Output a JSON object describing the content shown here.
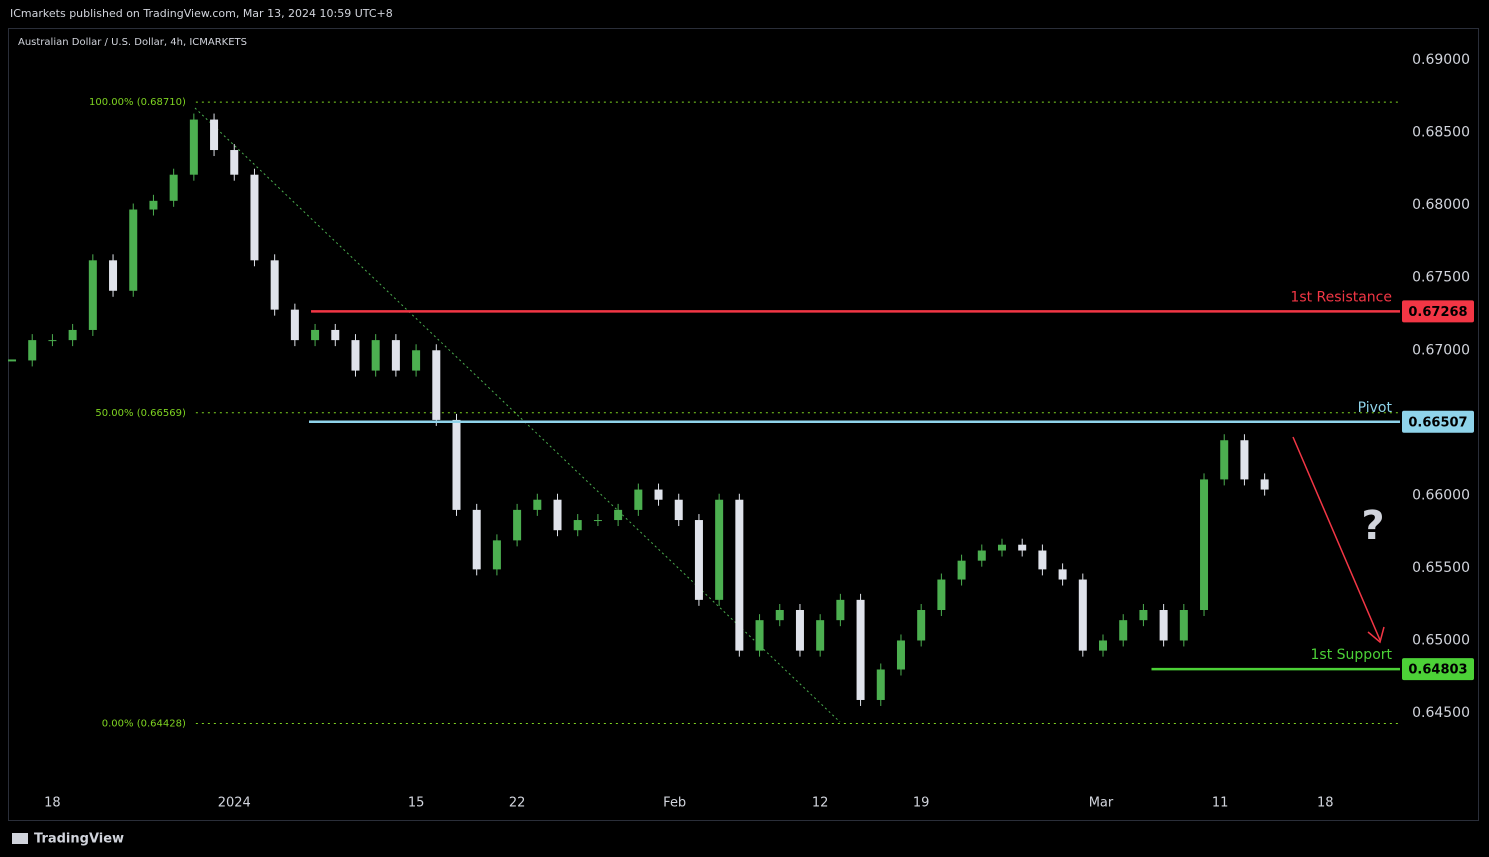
{
  "header": "ICmarkets published on TradingView.com, Mar 13, 2024 10:59 UTC+8",
  "footer": "TradingView",
  "chart_data": {
    "type": "candlestick",
    "title": "Australian Dollar / U.S. Dollar, 4h, ICMARKETS",
    "x": [
      -2,
      -1,
      0,
      1,
      2,
      3,
      4,
      5,
      6,
      7,
      8,
      9,
      10,
      11,
      12,
      13,
      14,
      15,
      16,
      17,
      18,
      19,
      20,
      21,
      22,
      23,
      24,
      25,
      26,
      27,
      28,
      29,
      30,
      31,
      32,
      33,
      34,
      35,
      36,
      37,
      38,
      39,
      40,
      41,
      42,
      43,
      44,
      45,
      46,
      47,
      48,
      49,
      50,
      51,
      52,
      53,
      54,
      55,
      56,
      57,
      58,
      59,
      60
    ],
    "values": [
      0.6693,
      0.6707,
      0.6707,
      0.6714,
      0.6762,
      0.6741,
      0.6797,
      0.6803,
      0.6821,
      0.6859,
      0.6838,
      0.6821,
      0.6762,
      0.6728,
      0.6707,
      0.6714,
      0.6707,
      0.6686,
      0.6707,
      0.6686,
      0.67,
      0.6652,
      0.659,
      0.6549,
      0.6569,
      0.659,
      0.6597,
      0.6576,
      0.6583,
      0.6583,
      0.659,
      0.6604,
      0.6597,
      0.6583,
      0.6528,
      0.6597,
      0.6493,
      0.6514,
      0.6521,
      0.6493,
      0.6514,
      0.6528,
      0.6459,
      0.648,
      0.65,
      0.6521,
      0.6542,
      0.6555,
      0.6562,
      0.6566,
      0.6562,
      0.6549,
      0.6542,
      0.6493,
      0.65,
      0.6514,
      0.6521,
      0.65,
      0.6521,
      0.6611,
      0.6638,
      0.6611,
      0.6604
    ],
    "up_color": "#4caf50",
    "down_color": "#e0e3eb",
    "xlim": [
      -2.1,
      66.7
    ],
    "xticks": [
      {
        "value": 0,
        "label": "18"
      },
      {
        "value": 9,
        "label": "2024"
      },
      {
        "value": 18,
        "label": "15"
      },
      {
        "value": 23,
        "label": "22"
      },
      {
        "value": 30.8,
        "label": "Feb"
      },
      {
        "value": 38,
        "label": "12"
      },
      {
        "value": 43,
        "label": "19"
      },
      {
        "value": 51.9,
        "label": "Mar"
      },
      {
        "value": 57.8,
        "label": "11"
      },
      {
        "value": 63,
        "label": "18"
      }
    ],
    "ylim": [
      0.64004,
      0.69221
    ],
    "yticks": [
      {
        "value": 0.69,
        "label": "0.69000"
      },
      {
        "value": 0.685,
        "label": "0.68500"
      },
      {
        "value": 0.68,
        "label": "0.68000"
      },
      {
        "value": 0.675,
        "label": "0.67500"
      },
      {
        "value": 0.67,
        "label": "0.67000"
      },
      {
        "value": 0.665,
        "label": "0.66500"
      },
      {
        "value": 0.66,
        "label": "0.66000"
      },
      {
        "value": 0.655,
        "label": "0.65500"
      },
      {
        "value": 0.65,
        "label": "0.65000"
      },
      {
        "value": 0.645,
        "label": "0.64500"
      }
    ],
    "fib_levels": [
      {
        "label": "100.00% (0.68710)",
        "value": 0.6871,
        "start": 7.1
      },
      {
        "label": "50.00% (0.66569)",
        "value": 0.66569,
        "start": 7.1
      },
      {
        "label": "0.00% (0.64428)",
        "value": 0.64428,
        "start": 7.1
      }
    ],
    "fib_color": "#7ed321",
    "levels": [
      {
        "name": "1st Resistance",
        "value": 0.67268,
        "value_label": "0.67268",
        "color": "#f23645",
        "start": 12.8
      },
      {
        "name": "Pivot",
        "value": 0.66507,
        "value_label": "0.66507",
        "color": "#8fd3ea",
        "start": 12.7
      },
      {
        "name": "1st Support",
        "value": 0.64803,
        "value_label": "0.64803",
        "color": "#4cd137",
        "start": 54.4
      }
    ],
    "annotation": "?"
  }
}
